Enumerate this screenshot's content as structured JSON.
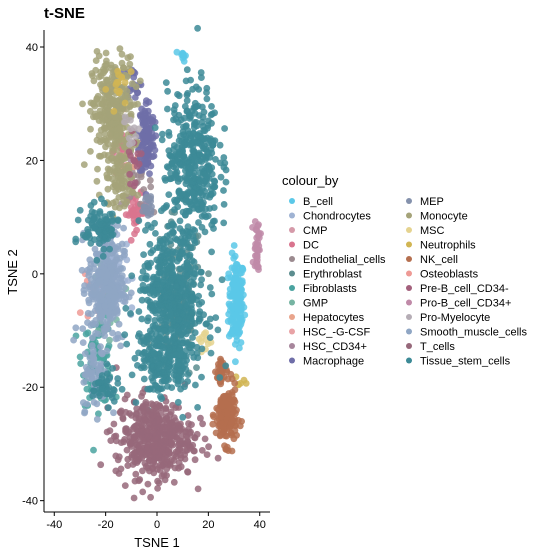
{
  "chart_data": {
    "type": "scatter",
    "title": "t-SNE",
    "xlabel": "TSNE 1",
    "ylabel": "TSNE 2",
    "xlim": [
      -44,
      44
    ],
    "ylim": [
      -42,
      43
    ],
    "xticks": [
      -40,
      -20,
      0,
      20,
      40
    ],
    "yticks": [
      -40,
      -20,
      0,
      20,
      40
    ],
    "grid": false,
    "legend_position": "right",
    "legend_title": "colour_by",
    "series": [
      {
        "name": "B_cell",
        "color": "#5bc8e8",
        "clusters": [
          {
            "cx": 31,
            "cy": -5,
            "rx": 3,
            "ry": 8,
            "n": 170
          },
          {
            "cx": 10,
            "cy": 38.5,
            "rx": 1.3,
            "ry": 1,
            "n": 10
          }
        ]
      },
      {
        "name": "Chondrocytes",
        "color": "#9fb3d3",
        "clusters": [
          {
            "cx": -18,
            "cy": 0,
            "rx": 6,
            "ry": 6,
            "n": 60
          }
        ]
      },
      {
        "name": "CMP",
        "color": "#d59aa9",
        "clusters": [
          {
            "cx": -15,
            "cy": 24,
            "rx": 2,
            "ry": 3,
            "n": 8
          }
        ]
      },
      {
        "name": "DC",
        "color": "#d9748e",
        "clusters": [
          {
            "cx": -8,
            "cy": 11,
            "rx": 4,
            "ry": 3,
            "n": 40
          },
          {
            "cx": -14,
            "cy": 22,
            "rx": 4,
            "ry": 4,
            "n": 20
          }
        ]
      },
      {
        "name": "Endothelial_cells",
        "color": "#9b8a8f",
        "clusters": [
          {
            "cx": -8,
            "cy": 16,
            "rx": 6,
            "ry": 4,
            "n": 25
          }
        ]
      },
      {
        "name": "Erythroblast",
        "color": "#5c8d8f",
        "clusters": [
          {
            "cx": 8,
            "cy": -5,
            "rx": 10,
            "ry": 15,
            "n": 120
          }
        ]
      },
      {
        "name": "Fibroblasts",
        "color": "#4aa3a0",
        "clusters": [
          {
            "cx": -23,
            "cy": -15,
            "rx": 6,
            "ry": 8,
            "n": 80
          }
        ]
      },
      {
        "name": "GMP",
        "color": "#76b4a2",
        "clusters": [
          {
            "cx": -20,
            "cy": -5,
            "rx": 5,
            "ry": 6,
            "n": 30
          }
        ]
      },
      {
        "name": "Hepatocytes",
        "color": "#e9a48c",
        "clusters": [
          {
            "cx": -12,
            "cy": 20,
            "rx": 4,
            "ry": 3,
            "n": 8
          }
        ]
      },
      {
        "name": "HSC_-G-CSF",
        "color": "#e8a3a6",
        "clusters": [
          {
            "cx": -16,
            "cy": 26,
            "rx": 3,
            "ry": 3,
            "n": 8
          }
        ]
      },
      {
        "name": "HSC_CD34+",
        "color": "#a7869c",
        "clusters": [
          {
            "cx": -6,
            "cy": 20,
            "rx": 4,
            "ry": 4,
            "n": 15
          }
        ]
      },
      {
        "name": "Macrophage",
        "color": "#6f6ea8",
        "clusters": [
          {
            "cx": -4,
            "cy": 24,
            "rx": 3,
            "ry": 7,
            "n": 120
          },
          {
            "cx": -9,
            "cy": 34,
            "rx": 3,
            "ry": 3,
            "n": 20
          }
        ]
      },
      {
        "name": "MEP",
        "color": "#8491ac",
        "clusters": [
          {
            "cx": -4,
            "cy": 12,
            "rx": 3,
            "ry": 3,
            "n": 20
          }
        ]
      },
      {
        "name": "Monocyte",
        "color": "#a5a379",
        "clusters": [
          {
            "cx": -17,
            "cy": 28,
            "rx": 8,
            "ry": 10,
            "n": 320
          },
          {
            "cx": -14,
            "cy": 16,
            "rx": 5,
            "ry": 4,
            "n": 60
          }
        ]
      },
      {
        "name": "MSC",
        "color": "#e5d38f",
        "clusters": [
          {
            "cx": 18,
            "cy": -12,
            "rx": 3,
            "ry": 3,
            "n": 10
          }
        ]
      },
      {
        "name": "Neutrophils",
        "color": "#d1b553",
        "clusters": [
          {
            "cx": -14,
            "cy": 33,
            "rx": 5,
            "ry": 4,
            "n": 15
          },
          {
            "cx": 32,
            "cy": -19,
            "rx": 2,
            "ry": 2,
            "n": 6
          }
        ]
      },
      {
        "name": "NK_cell",
        "color": "#b56f4f",
        "clusters": [
          {
            "cx": 27,
            "cy": -25,
            "rx": 4,
            "ry": 5,
            "n": 170
          },
          {
            "cx": 25,
            "cy": -17,
            "rx": 2,
            "ry": 3,
            "n": 30
          }
        ]
      },
      {
        "name": "Osteoblasts",
        "color": "#ee9a95",
        "clusters": [
          {
            "cx": -25,
            "cy": -5,
            "rx": 4,
            "ry": 4,
            "n": 10
          }
        ]
      },
      {
        "name": "Pre-B_cell_CD34-",
        "color": "#a3607c",
        "clusters": [
          {
            "cx": -9,
            "cy": 20,
            "rx": 3,
            "ry": 4,
            "n": 15
          }
        ]
      },
      {
        "name": "Pro-B_cell_CD34+",
        "color": "#c08aa8",
        "clusters": [
          {
            "cx": 39,
            "cy": 5,
            "rx": 1.2,
            "ry": 5,
            "n": 35
          }
        ]
      },
      {
        "name": "Pro-Myelocyte",
        "color": "#b5adb5",
        "clusters": [
          {
            "cx": -10,
            "cy": 25,
            "rx": 3,
            "ry": 3,
            "n": 10
          }
        ]
      },
      {
        "name": "Smooth_muscle_cells",
        "color": "#8fa6c4",
        "clusters": [
          {
            "cx": -20,
            "cy": -2,
            "rx": 7,
            "ry": 10,
            "n": 320
          },
          {
            "cx": -24,
            "cy": -18,
            "rx": 5,
            "ry": 6,
            "n": 60
          }
        ]
      },
      {
        "name": "T_cells",
        "color": "#96687a",
        "clusters": [
          {
            "cx": -1,
            "cy": -29,
            "rx": 15,
            "ry": 7,
            "n": 450
          }
        ]
      },
      {
        "name": "Tissue_stem_cells",
        "color": "#3c8a96",
        "clusters": [
          {
            "cx": 14,
            "cy": 20,
            "rx": 10,
            "ry": 13,
            "n": 380
          },
          {
            "cx": 6,
            "cy": -5,
            "rx": 13,
            "ry": 13,
            "n": 520
          },
          {
            "cx": 3,
            "cy": -16,
            "rx": 10,
            "ry": 5,
            "n": 150
          },
          {
            "cx": -22,
            "cy": 8,
            "rx": 7,
            "ry": 4,
            "n": 90
          },
          {
            "cx": -20,
            "cy": -20,
            "rx": 5,
            "ry": 3,
            "n": 40
          }
        ]
      }
    ]
  }
}
